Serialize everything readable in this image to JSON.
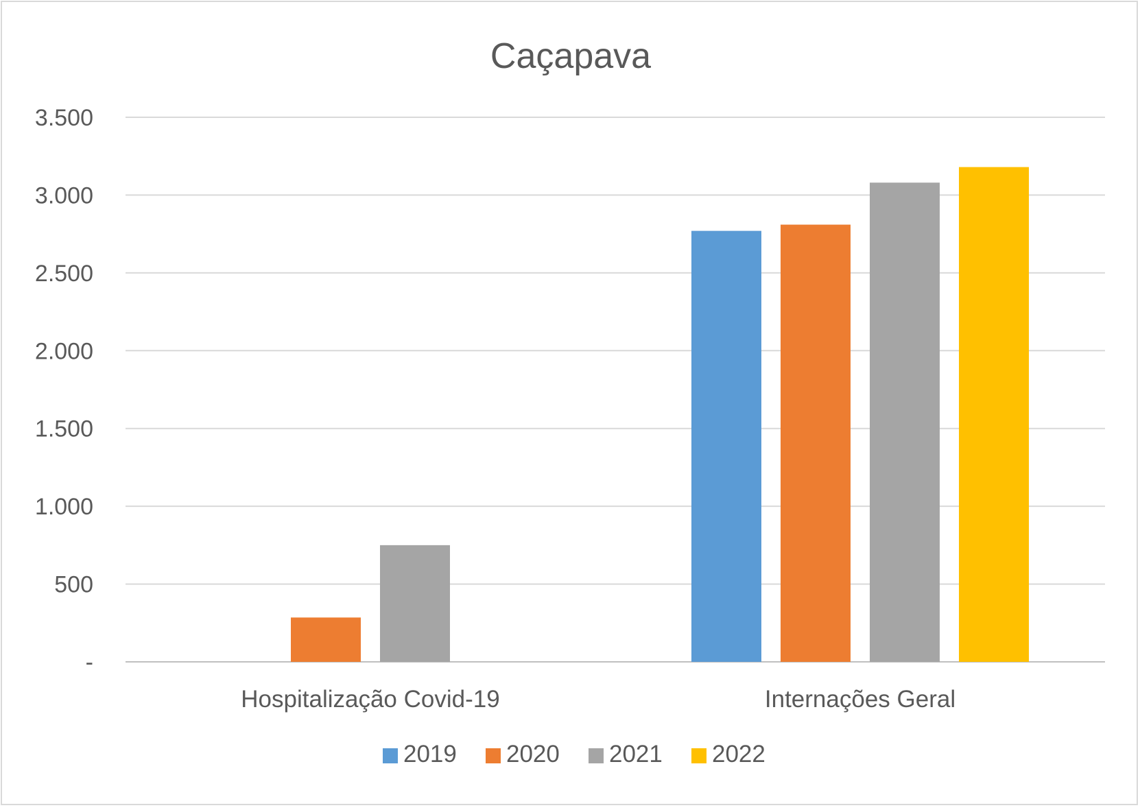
{
  "chart_data": {
    "type": "bar",
    "title": "Caçapava",
    "categories": [
      "Hospitalização Covid-19",
      "Internações Geral"
    ],
    "series": [
      {
        "name": "2019",
        "color": "#5b9bd5",
        "values": [
          0,
          2770
        ]
      },
      {
        "name": "2020",
        "color": "#ed7d31",
        "values": [
          285,
          2810
        ]
      },
      {
        "name": "2021",
        "color": "#a5a5a5",
        "values": [
          750,
          3080
        ]
      },
      {
        "name": "2022",
        "color": "#ffc000",
        "values": [
          0,
          3180
        ]
      }
    ],
    "ylim": [
      0,
      3500
    ],
    "yticks": [
      0,
      500,
      1000,
      1500,
      2000,
      2500,
      3000,
      3500
    ],
    "ytick_labels": [
      "-",
      "500",
      "1.000",
      "1.500",
      "2.000",
      "2.500",
      "3.000",
      "3.500"
    ],
    "xlabel": "",
    "ylabel": "",
    "grid": true,
    "legend_position": "bottom"
  }
}
